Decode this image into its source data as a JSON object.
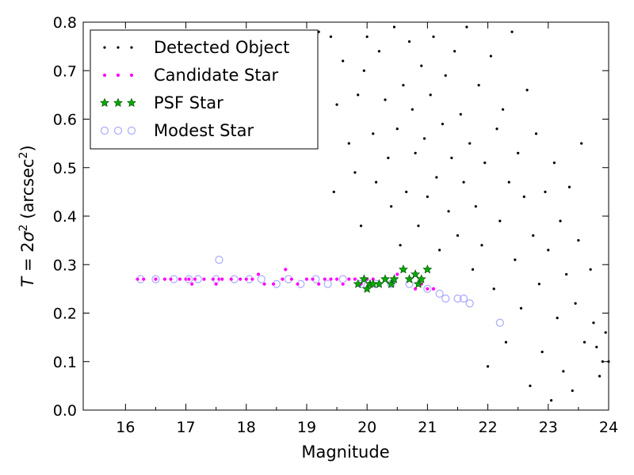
{
  "chart_data": {
    "type": "scatter",
    "xlabel": "Magnitude",
    "ylabel_parts": {
      "lhs": "T",
      "eq": " = 2",
      "sigma": "σ",
      "exp": "2",
      "paren_open": " (arcsec",
      "paren_exp": "2",
      "paren_close": ")"
    },
    "xlim": [
      15.3,
      24
    ],
    "ylim": [
      0,
      0.8
    ],
    "x_ticks": [
      16,
      17,
      18,
      19,
      20,
      21,
      22,
      23,
      24
    ],
    "y_ticks": [
      0.0,
      0.1,
      0.2,
      0.3,
      0.4,
      0.5,
      0.6,
      0.7,
      0.8
    ],
    "x_tick_labels": [
      "16",
      "17",
      "18",
      "19",
      "20",
      "21",
      "22",
      "23",
      "24"
    ],
    "y_tick_labels": [
      "0.0",
      "0.1",
      "0.2",
      "0.3",
      "0.4",
      "0.5",
      "0.6",
      "0.7",
      "0.8"
    ],
    "grid": false,
    "legend_position": "top-left",
    "series": [
      {
        "name": "Detected Object",
        "marker": "dot",
        "color": "#000000",
        "points": [
          [
            18.9,
            0.57
          ],
          [
            19.1,
            0.55
          ],
          [
            19.2,
            0.78
          ],
          [
            19.4,
            0.77
          ],
          [
            19.45,
            0.45
          ],
          [
            19.5,
            0.63
          ],
          [
            19.6,
            0.72
          ],
          [
            19.7,
            0.55
          ],
          [
            19.8,
            0.49
          ],
          [
            19.85,
            0.65
          ],
          [
            19.9,
            0.38
          ],
          [
            19.95,
            0.7
          ],
          [
            20.0,
            0.77
          ],
          [
            20.1,
            0.57
          ],
          [
            20.15,
            0.47
          ],
          [
            20.2,
            0.74
          ],
          [
            20.3,
            0.64
          ],
          [
            20.35,
            0.52
          ],
          [
            20.4,
            0.42
          ],
          [
            20.45,
            0.79
          ],
          [
            20.5,
            0.58
          ],
          [
            20.55,
            0.34
          ],
          [
            20.6,
            0.67
          ],
          [
            20.65,
            0.45
          ],
          [
            20.7,
            0.76
          ],
          [
            20.75,
            0.62
          ],
          [
            20.8,
            0.53
          ],
          [
            20.85,
            0.38
          ],
          [
            20.9,
            0.71
          ],
          [
            20.95,
            0.56
          ],
          [
            21.0,
            0.44
          ],
          [
            21.05,
            0.65
          ],
          [
            21.1,
            0.77
          ],
          [
            21.15,
            0.48
          ],
          [
            21.2,
            0.33
          ],
          [
            21.25,
            0.59
          ],
          [
            21.3,
            0.69
          ],
          [
            21.35,
            0.41
          ],
          [
            21.4,
            0.52
          ],
          [
            21.45,
            0.74
          ],
          [
            21.5,
            0.36
          ],
          [
            21.55,
            0.61
          ],
          [
            21.6,
            0.47
          ],
          [
            21.65,
            0.79
          ],
          [
            21.7,
            0.55
          ],
          [
            21.75,
            0.29
          ],
          [
            21.8,
            0.42
          ],
          [
            21.85,
            0.67
          ],
          [
            21.9,
            0.34
          ],
          [
            21.95,
            0.51
          ],
          [
            22.0,
            0.09
          ],
          [
            22.05,
            0.73
          ],
          [
            22.1,
            0.25
          ],
          [
            22.15,
            0.58
          ],
          [
            22.2,
            0.39
          ],
          [
            22.25,
            0.62
          ],
          [
            22.3,
            0.14
          ],
          [
            22.35,
            0.47
          ],
          [
            22.4,
            0.78
          ],
          [
            22.45,
            0.31
          ],
          [
            22.5,
            0.53
          ],
          [
            22.55,
            0.21
          ],
          [
            22.6,
            0.44
          ],
          [
            22.65,
            0.66
          ],
          [
            22.7,
            0.05
          ],
          [
            22.75,
            0.36
          ],
          [
            22.8,
            0.57
          ],
          [
            22.85,
            0.26
          ],
          [
            22.9,
            0.12
          ],
          [
            22.95,
            0.45
          ],
          [
            23.0,
            0.33
          ],
          [
            23.05,
            0.02
          ],
          [
            23.1,
            0.51
          ],
          [
            23.15,
            0.19
          ],
          [
            23.2,
            0.39
          ],
          [
            23.25,
            0.08
          ],
          [
            23.3,
            0.28
          ],
          [
            23.35,
            0.46
          ],
          [
            23.4,
            0.04
          ],
          [
            23.45,
            0.22
          ],
          [
            23.5,
            0.35
          ],
          [
            23.55,
            0.55
          ],
          [
            23.6,
            0.14
          ],
          [
            23.7,
            0.29
          ],
          [
            23.75,
            0.18
          ],
          [
            23.8,
            0.13
          ],
          [
            23.85,
            0.07
          ],
          [
            23.9,
            0.1
          ],
          [
            23.95,
            0.16
          ],
          [
            24.0,
            0.1
          ]
        ]
      },
      {
        "name": "Candidate Star",
        "marker": "circle",
        "color": "#ff00ff",
        "points": [
          [
            16.2,
            0.27
          ],
          [
            16.3,
            0.27
          ],
          [
            16.5,
            0.27
          ],
          [
            16.65,
            0.27
          ],
          [
            16.75,
            0.27
          ],
          [
            16.9,
            0.27
          ],
          [
            17.0,
            0.27
          ],
          [
            17.05,
            0.27
          ],
          [
            17.1,
            0.26
          ],
          [
            17.15,
            0.27
          ],
          [
            17.3,
            0.27
          ],
          [
            17.45,
            0.27
          ],
          [
            17.5,
            0.26
          ],
          [
            17.55,
            0.27
          ],
          [
            17.6,
            0.27
          ],
          [
            17.75,
            0.27
          ],
          [
            17.9,
            0.27
          ],
          [
            18.0,
            0.27
          ],
          [
            18.1,
            0.27
          ],
          [
            18.2,
            0.28
          ],
          [
            18.3,
            0.26
          ],
          [
            18.45,
            0.26
          ],
          [
            18.6,
            0.27
          ],
          [
            18.65,
            0.29
          ],
          [
            18.75,
            0.27
          ],
          [
            18.85,
            0.26
          ],
          [
            19.0,
            0.27
          ],
          [
            19.1,
            0.27
          ],
          [
            19.2,
            0.26
          ],
          [
            19.3,
            0.27
          ],
          [
            19.4,
            0.27
          ],
          [
            19.5,
            0.27
          ],
          [
            19.6,
            0.26
          ],
          [
            19.7,
            0.27
          ],
          [
            19.8,
            0.27
          ],
          [
            19.9,
            0.26
          ],
          [
            20.0,
            0.27
          ],
          [
            20.1,
            0.27
          ],
          [
            20.2,
            0.26
          ],
          [
            20.3,
            0.27
          ],
          [
            20.4,
            0.26
          ],
          [
            20.5,
            0.28
          ],
          [
            20.8,
            0.25
          ],
          [
            20.9,
            0.26
          ],
          [
            21.0,
            0.25
          ],
          [
            21.1,
            0.25
          ]
        ]
      },
      {
        "name": "PSF Star",
        "marker": "star",
        "color": "#00aa00",
        "points": [
          [
            19.85,
            0.26
          ],
          [
            19.95,
            0.27
          ],
          [
            20.0,
            0.25
          ],
          [
            20.05,
            0.26
          ],
          [
            20.1,
            0.26
          ],
          [
            20.2,
            0.26
          ],
          [
            20.3,
            0.27
          ],
          [
            20.4,
            0.26
          ],
          [
            20.45,
            0.27
          ],
          [
            20.6,
            0.29
          ],
          [
            20.7,
            0.27
          ],
          [
            20.8,
            0.28
          ],
          [
            20.85,
            0.26
          ],
          [
            20.9,
            0.27
          ],
          [
            21.0,
            0.29
          ]
        ]
      },
      {
        "name": "Modest Star",
        "marker": "open-circle",
        "color": "#aaaaff",
        "points": [
          [
            16.25,
            0.27
          ],
          [
            16.5,
            0.27
          ],
          [
            16.8,
            0.27
          ],
          [
            17.05,
            0.27
          ],
          [
            17.2,
            0.27
          ],
          [
            17.5,
            0.27
          ],
          [
            17.55,
            0.31
          ],
          [
            17.8,
            0.27
          ],
          [
            18.05,
            0.27
          ],
          [
            18.25,
            0.27
          ],
          [
            18.5,
            0.26
          ],
          [
            18.7,
            0.27
          ],
          [
            18.9,
            0.26
          ],
          [
            19.15,
            0.27
          ],
          [
            19.35,
            0.26
          ],
          [
            19.6,
            0.27
          ],
          [
            19.9,
            0.26
          ],
          [
            20.15,
            0.26
          ],
          [
            20.4,
            0.26
          ],
          [
            20.7,
            0.26
          ],
          [
            21.0,
            0.25
          ],
          [
            21.2,
            0.24
          ],
          [
            21.3,
            0.23
          ],
          [
            21.5,
            0.23
          ],
          [
            21.6,
            0.23
          ],
          [
            21.7,
            0.22
          ],
          [
            22.2,
            0.18
          ]
        ]
      }
    ]
  }
}
